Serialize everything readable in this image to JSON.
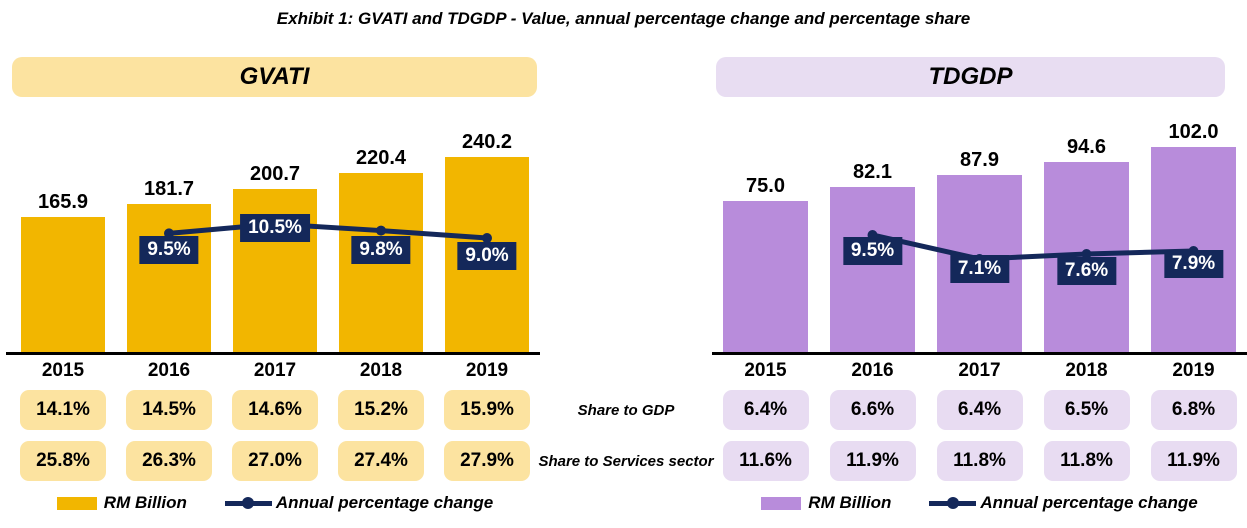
{
  "title": "Exhibit 1: GVATI and TDGDP - Value, annual percentage change and percentage share",
  "row_labels": {
    "share_to_gdp": "Share to GDP",
    "share_to_services": "Share to Services sector"
  },
  "colors": {
    "line_navy": "#14285A",
    "axis_black": "#000000"
  },
  "chart_data": [
    {
      "type": "bar+line",
      "title": "GVATI",
      "categories": [
        "2015",
        "2016",
        "2017",
        "2018",
        "2019"
      ],
      "series": [
        {
          "name": "RM Billion",
          "type": "bar",
          "values": [
            165.9,
            181.7,
            200.7,
            220.4,
            240.2
          ]
        },
        {
          "name": "Annual percentage change",
          "type": "line",
          "values": [
            null,
            9.5,
            10.5,
            9.8,
            9.0
          ],
          "labels": [
            "9.5%",
            "10.5%",
            "9.8%",
            "9.0%"
          ]
        }
      ],
      "share_rows": [
        {
          "label": "Share to GDP",
          "values": [
            "14.1%",
            "14.5%",
            "14.6%",
            "15.2%",
            "15.9%"
          ]
        },
        {
          "label": "Share to Services sector",
          "values": [
            "25.8%",
            "26.3%",
            "27.0%",
            "27.4%",
            "27.9%"
          ]
        }
      ],
      "colors": {
        "bar": "#F2B600",
        "pill": "#FCE3A0",
        "header": "#FCE3A0"
      }
    },
    {
      "type": "bar+line",
      "title": "TDGDP",
      "categories": [
        "2015",
        "2016",
        "2017",
        "2018",
        "2019"
      ],
      "series": [
        {
          "name": "RM Billion",
          "type": "bar",
          "values": [
            75.0,
            82.1,
            87.9,
            94.6,
            102.0
          ]
        },
        {
          "name": "Annual percentage change",
          "type": "line",
          "values": [
            null,
            9.5,
            7.1,
            7.6,
            7.9
          ],
          "labels": [
            "9.5%",
            "7.1%",
            "7.6%",
            "7.9%"
          ]
        }
      ],
      "share_rows": [
        {
          "label": "Share to GDP",
          "values": [
            "6.4%",
            "6.6%",
            "6.4%",
            "6.5%",
            "6.8%"
          ]
        },
        {
          "label": "Share to Services sector",
          "values": [
            "11.6%",
            "11.9%",
            "11.8%",
            "11.8%",
            "11.9%"
          ]
        }
      ],
      "colors": {
        "bar": "#B88CDB",
        "pill": "#E8DCF2",
        "header": "#E8DDF2"
      }
    }
  ]
}
